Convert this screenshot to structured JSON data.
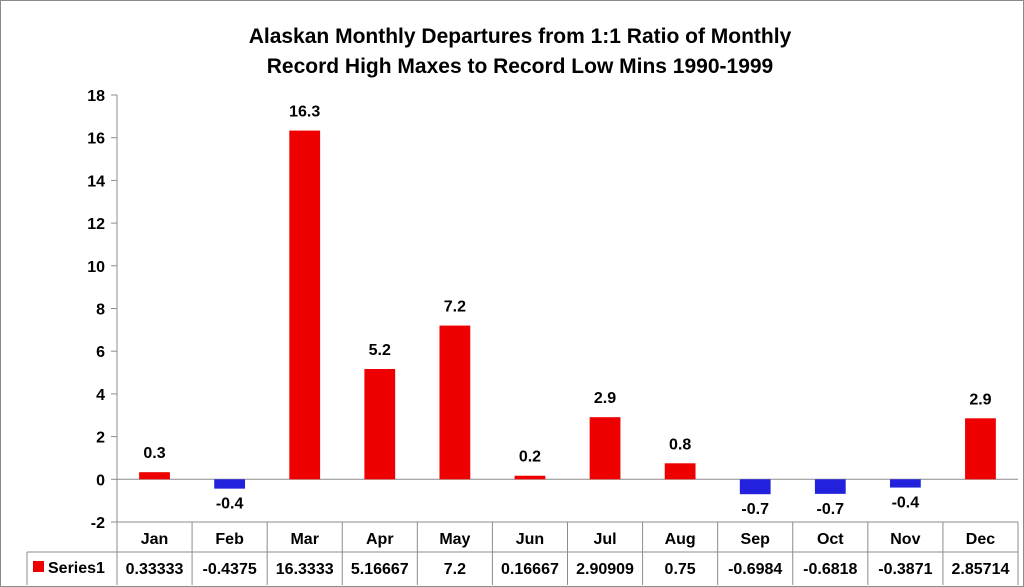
{
  "chart_data": {
    "type": "bar",
    "title_line1": "Alaskan Monthly Departures from 1:1 Ratio of Monthly",
    "title_line2": "Record High Maxes to Record Low Mins 1990-1999",
    "categories": [
      "Jan",
      "Feb",
      "Mar",
      "Apr",
      "May",
      "Jun",
      "Jul",
      "Aug",
      "Sep",
      "Oct",
      "Nov",
      "Dec"
    ],
    "series": [
      {
        "name": "Series1",
        "values": [
          0.33333,
          -0.4375,
          16.3333,
          5.16667,
          7.2,
          0.16667,
          2.90909,
          0.75,
          -0.6984,
          -0.6818,
          -0.3871,
          2.85714
        ],
        "table_values": [
          "0.33333",
          "-0.4375",
          "16.3333",
          "5.16667",
          "7.2",
          "0.16667",
          "2.90909",
          "0.75",
          "-0.6984",
          "-0.6818",
          "-0.3871",
          "2.85714"
        ],
        "data_labels": [
          "0.3",
          "-0.4",
          "16.3",
          "5.2",
          "7.2",
          "0.2",
          "2.9",
          "0.8",
          "-0.7",
          "-0.7",
          "-0.4",
          "2.9"
        ]
      }
    ],
    "ylim": [
      -2,
      18
    ],
    "yticks": [
      -2,
      0,
      2,
      4,
      6,
      8,
      10,
      12,
      14,
      16,
      18
    ],
    "grid": false,
    "legend_placement": "data-table",
    "colors": {
      "positive": "#ee0000",
      "negative": "#2222dd",
      "axis": "#8c8c8c"
    }
  }
}
